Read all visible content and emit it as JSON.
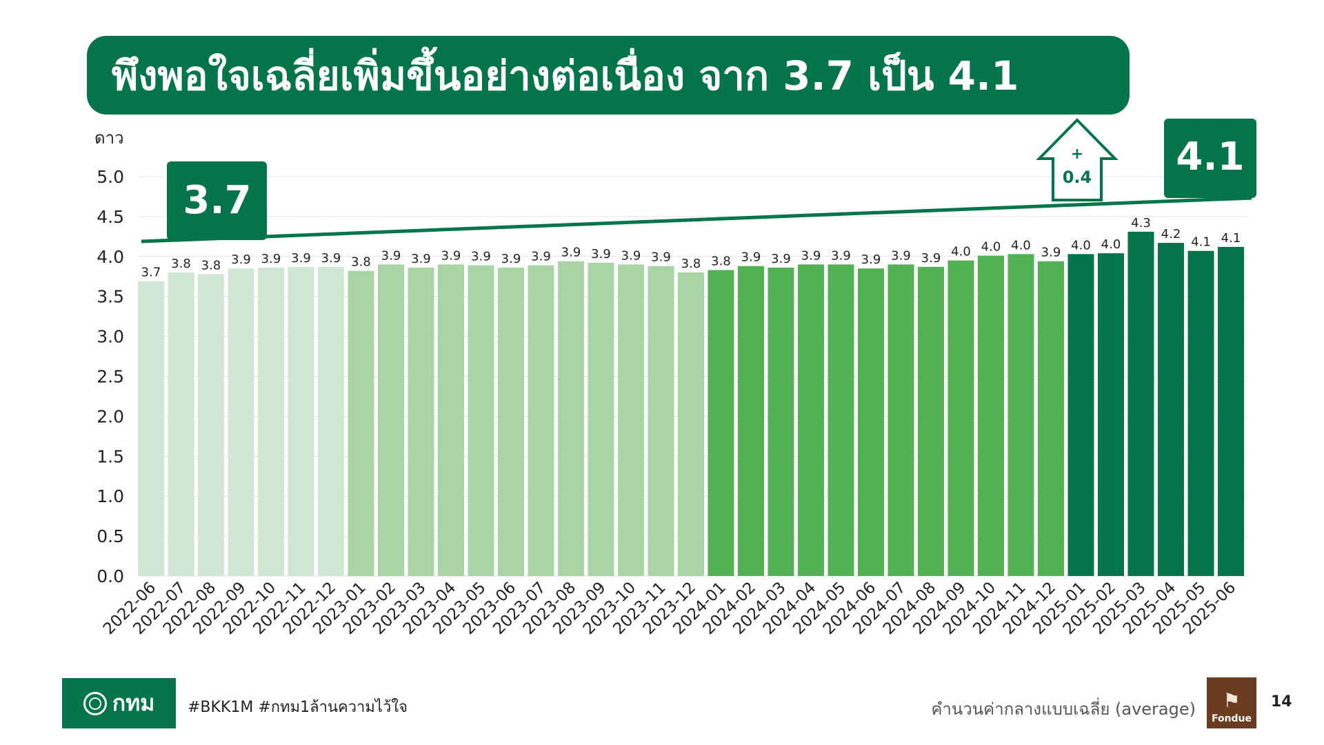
{
  "header": {
    "title": "พึงพอใจเฉลี่ยเพิ่มขึ้นอย่างต่อเนื่อง จาก 3.7 เป็น 4.1"
  },
  "chart_data": {
    "type": "bar",
    "ylabel": "ดาว",
    "ylim": [
      0,
      5
    ],
    "yticks": [
      "0.0",
      "0.5",
      "1.0",
      "1.5",
      "2.0",
      "2.5",
      "3.0",
      "3.5",
      "4.0",
      "4.5",
      "5.0"
    ],
    "grid": true,
    "categories": [
      "2022-06",
      "2022-07",
      "2022-08",
      "2022-09",
      "2022-10",
      "2022-11",
      "2022-12",
      "2023-01",
      "2023-02",
      "2023-03",
      "2023-04",
      "2023-05",
      "2023-06",
      "2023-07",
      "2023-08",
      "2023-09",
      "2023-10",
      "2023-11",
      "2023-12",
      "2024-01",
      "2024-02",
      "2024-03",
      "2024-04",
      "2024-05",
      "2024-06",
      "2024-07",
      "2024-08",
      "2024-09",
      "2024-10",
      "2024-11",
      "2024-12",
      "2025-01",
      "2025-02",
      "2025-03",
      "2025-04",
      "2025-05",
      "2025-06"
    ],
    "values": [
      3.69,
      3.8,
      3.78,
      3.85,
      3.86,
      3.87,
      3.87,
      3.82,
      3.9,
      3.86,
      3.9,
      3.89,
      3.86,
      3.89,
      3.94,
      3.92,
      3.9,
      3.88,
      3.8,
      3.83,
      3.88,
      3.86,
      3.9,
      3.9,
      3.85,
      3.9,
      3.87,
      3.95,
      4.01,
      4.03,
      3.94,
      4.03,
      4.04,
      4.31,
      4.17,
      4.07,
      4.12
    ],
    "value_labels": [
      "3.7",
      "3.8",
      "3.8",
      "3.9",
      "3.9",
      "3.9",
      "3.9",
      "3.8",
      "3.9",
      "3.9",
      "3.9",
      "3.9",
      "3.9",
      "3.9",
      "3.9",
      "3.9",
      "3.9",
      "3.9",
      "3.8",
      "3.8",
      "3.9",
      "3.9",
      "3.9",
      "3.9",
      "3.9",
      "3.9",
      "3.9",
      "4.0",
      "4.0",
      "4.0",
      "3.9",
      "4.0",
      "4.0",
      "4.3",
      "4.2",
      "4.1",
      "4.1"
    ],
    "year_colors": {
      "2022": "#d0e8d3",
      "2023": "#a9d5a6",
      "2024": "#52b153",
      "2025": "#04754a"
    },
    "trend": {
      "start": 3.7,
      "end": 4.1,
      "color": "#04754a"
    },
    "annotations": {
      "start_label": "3.7",
      "end_label": "4.1",
      "delta_plus": "+",
      "delta_value": "0.4"
    }
  },
  "footer": {
    "logo_text": "กทม",
    "hashtags": "#BKK1M #กทม1ล้านความไว้ใจ",
    "method_note": "คำนวนค่ากลางแบบเฉลี่ย (average)",
    "brand": "Fondue",
    "page_number": "14"
  }
}
